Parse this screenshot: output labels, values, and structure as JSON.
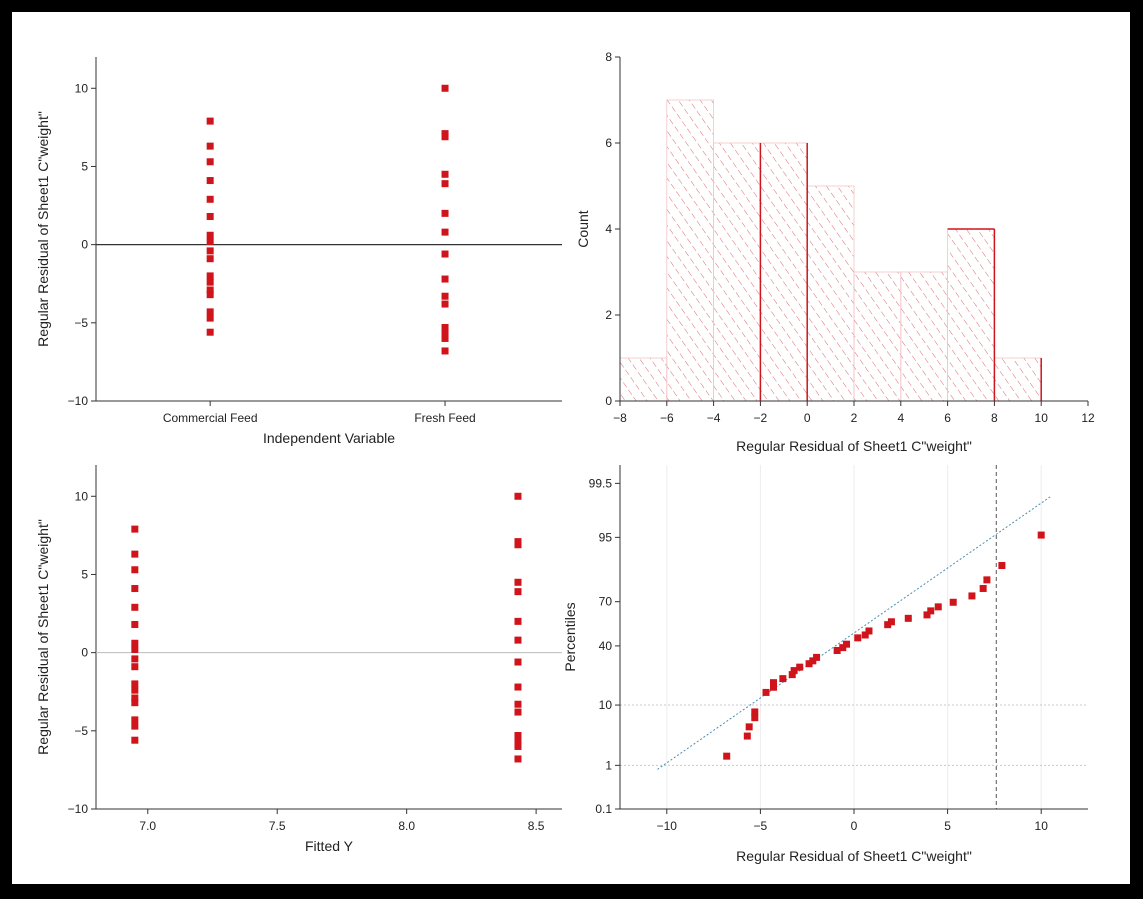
{
  "chart_data": [
    {
      "id": "p1",
      "type": "scatter",
      "xlabel": "Independent Variable",
      "ylabel": "Regular Residual of Sheet1 C\"weight\"",
      "categories": [
        "Commercial Feed",
        "Fresh Feed"
      ],
      "ylim": [
        -10,
        12
      ],
      "yticks": [
        -10,
        -5,
        0,
        5,
        10
      ],
      "reference_line_y": 0,
      "grid": false,
      "series": [
        {
          "values_by_category": [
            [
              7.9,
              6.3,
              5.3,
              4.1,
              2.9,
              1.8,
              0.6,
              0.2,
              -0.4,
              -0.9,
              -2.0,
              -2.4,
              -2.9,
              -3.2,
              -4.3,
              -4.7,
              -5.6
            ],
            [
              10.0,
              7.1,
              6.9,
              4.5,
              3.9,
              2.0,
              0.8,
              -0.6,
              -2.2,
              -3.3,
              -3.8,
              -5.3,
              -5.7,
              -6.0,
              -6.8
            ]
          ]
        }
      ],
      "marker_color": "#d0141c"
    },
    {
      "id": "p2",
      "type": "bar",
      "xlabel": "Regular Residual of Sheet1 C\"weight\"",
      "ylabel": "Count",
      "bins": [
        [
          -8,
          -6
        ],
        [
          -6,
          -4
        ],
        [
          -4,
          -2
        ],
        [
          -2,
          0
        ],
        [
          0,
          2
        ],
        [
          2,
          4
        ],
        [
          4,
          6
        ],
        [
          6,
          8
        ],
        [
          8,
          10
        ]
      ],
      "values": [
        1,
        7,
        6,
        6,
        5,
        3,
        3,
        4,
        1
      ],
      "xlim": [
        -8,
        12
      ],
      "ylim": [
        0,
        8
      ],
      "xticks": [
        -8,
        -6,
        -4,
        -2,
        0,
        2,
        4,
        6,
        8,
        10,
        12
      ],
      "yticks": [
        0,
        2,
        4,
        6,
        8
      ],
      "fill": "hatched",
      "bar_color": "#d0141c"
    },
    {
      "id": "p3",
      "type": "scatter",
      "xlabel": "Fitted Y",
      "ylabel": "Regular Residual of Sheet1 C\"weight\"",
      "xlim": [
        6.8,
        8.6
      ],
      "ylim": [
        -10,
        12
      ],
      "xticks": [
        7.0,
        7.5,
        8.0,
        8.5
      ],
      "xtick_labels": [
        "7.0",
        "7.5",
        "8.0",
        "8.5"
      ],
      "yticks": [
        -10,
        -5,
        0,
        5,
        10
      ],
      "reference_line_y": 0,
      "series": [
        {
          "x": 6.95,
          "y": [
            7.9,
            6.3,
            5.3,
            4.1,
            2.9,
            1.8,
            0.6,
            0.2,
            -0.4,
            -0.9,
            -2.0,
            -2.4,
            -2.9,
            -3.2,
            -4.3,
            -4.7,
            -5.6
          ]
        },
        {
          "x": 8.43,
          "y": [
            10.0,
            7.1,
            6.9,
            4.5,
            3.9,
            2.0,
            0.8,
            -0.6,
            -2.2,
            -3.3,
            -3.8,
            -5.3,
            -5.7,
            -6.0,
            -6.8
          ]
        }
      ],
      "marker_color": "#d0141c"
    },
    {
      "id": "p4",
      "type": "scatter",
      "xlabel": "Regular Residual of Sheet1 C\"weight\"",
      "ylabel": "Percentiles",
      "xlim": [
        -12.5,
        12.5
      ],
      "xticks": [
        -10,
        -5,
        0,
        5,
        10
      ],
      "ytick_labels": [
        "0.1",
        "1",
        "10",
        "40",
        "70",
        "95",
        "99.5"
      ],
      "ytick_z": [
        -3.09,
        -2.33,
        -1.28,
        -0.25,
        0.52,
        1.64,
        2.58
      ],
      "ylim_z": [
        -3.09,
        2.9
      ],
      "reference_lines_z": [
        -2.33,
        -1.28
      ],
      "reference_line_x": 7.6,
      "fit_line": {
        "x": [
          -10.5,
          10.5
        ],
        "z": [
          -2.4,
          2.35
        ]
      },
      "points": [
        [
          -6.8,
          -2.17
        ],
        [
          -5.7,
          -1.82
        ],
        [
          -5.6,
          -1.66
        ],
        [
          -5.3,
          -1.5
        ],
        [
          -5.3,
          -1.4
        ],
        [
          -4.7,
          -1.06
        ],
        [
          -4.3,
          -0.97
        ],
        [
          -4.3,
          -0.89
        ],
        [
          -3.8,
          -0.82
        ],
        [
          -3.3,
          -0.75
        ],
        [
          -3.2,
          -0.68
        ],
        [
          -2.9,
          -0.62
        ],
        [
          -2.4,
          -0.56
        ],
        [
          -2.2,
          -0.51
        ],
        [
          -2.0,
          -0.45
        ],
        [
          -0.9,
          -0.33
        ],
        [
          -0.6,
          -0.28
        ],
        [
          -0.4,
          -0.22
        ],
        [
          0.2,
          -0.11
        ],
        [
          0.6,
          -0.06
        ],
        [
          0.8,
          0.01
        ],
        [
          1.8,
          0.12
        ],
        [
          2.0,
          0.17
        ],
        [
          2.9,
          0.23
        ],
        [
          3.9,
          0.29
        ],
        [
          4.1,
          0.36
        ],
        [
          4.5,
          0.43
        ],
        [
          5.3,
          0.51
        ],
        [
          6.3,
          0.62
        ],
        [
          6.9,
          0.75
        ],
        [
          7.1,
          0.9
        ],
        [
          7.9,
          1.15
        ],
        [
          10.0,
          1.68
        ]
      ],
      "marker_color": "#d0141c"
    }
  ]
}
